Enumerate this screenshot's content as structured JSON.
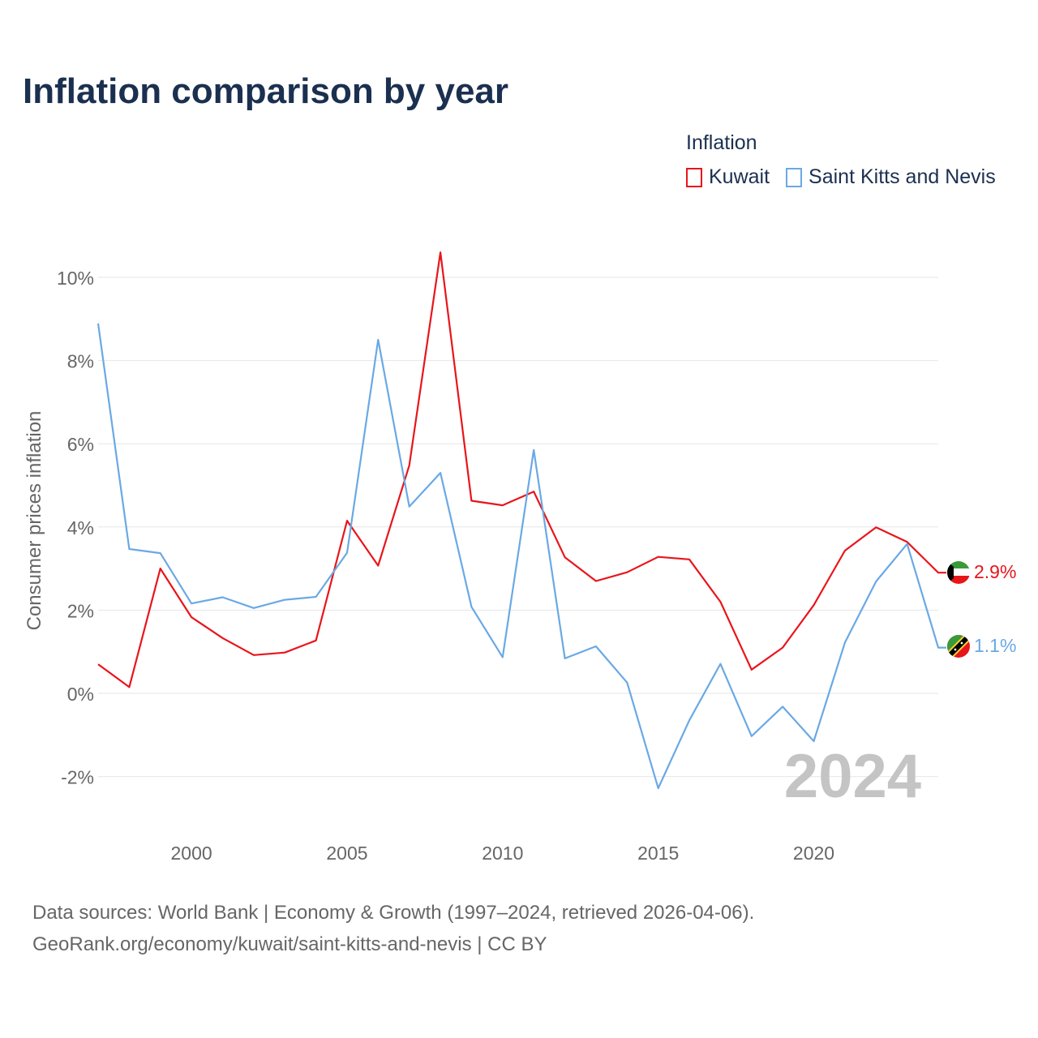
{
  "title": "Inflation comparison by year",
  "legend": {
    "title": "Inflation",
    "items": [
      {
        "label": "Kuwait",
        "color": "#e8151b"
      },
      {
        "label": "Saint Kitts and Nevis",
        "color": "#6aa9e4"
      }
    ]
  },
  "watermark_year": "2024",
  "source": {
    "line1": "Data sources: World Bank | Economy & Growth (1997–2024, retrieved 2026-04-06).",
    "line2": "GeoRank.org/economy/kuwait/saint-kitts-and-nevis | CC BY"
  },
  "chart_data": {
    "type": "line",
    "title": "Inflation comparison by year",
    "xlabel": "",
    "ylabel": "Consumer prices inflation",
    "xlim": [
      1997,
      2024
    ],
    "ylim": [
      -2.5,
      10.5
    ],
    "yticks": [
      -2,
      0,
      2,
      4,
      6,
      8,
      10
    ],
    "ytick_labels": [
      "-2%",
      "0%",
      "2%",
      "4%",
      "6%",
      "8%",
      "10%"
    ],
    "xticks": [
      2000,
      2005,
      2010,
      2015,
      2020
    ],
    "xtick_labels": [
      "2000",
      "2005",
      "2010",
      "2015",
      "2020"
    ],
    "grid": true,
    "x": [
      1997,
      1998,
      1999,
      2000,
      2001,
      2002,
      2003,
      2004,
      2005,
      2006,
      2007,
      2008,
      2009,
      2010,
      2011,
      2012,
      2013,
      2014,
      2015,
      2016,
      2017,
      2018,
      2019,
      2020,
      2021,
      2022,
      2023,
      2024
    ],
    "series": [
      {
        "name": "Kuwait",
        "color": "#e8151b",
        "values": [
          0.7,
          0.15,
          3.0,
          1.83,
          1.33,
          0.92,
          0.98,
          1.27,
          4.15,
          3.07,
          5.48,
          10.6,
          4.63,
          4.52,
          4.85,
          3.27,
          2.7,
          2.91,
          3.28,
          3.22,
          2.2,
          0.57,
          1.1,
          2.12,
          3.43,
          3.99,
          3.64,
          2.9
        ],
        "end_label": "2.9%"
      },
      {
        "name": "Saint Kitts and Nevis",
        "color": "#6aa9e4",
        "values": [
          8.89,
          3.47,
          3.37,
          2.16,
          2.31,
          2.05,
          2.25,
          2.32,
          3.38,
          8.5,
          4.49,
          5.3,
          2.08,
          0.87,
          5.85,
          0.84,
          1.13,
          0.26,
          -2.28,
          -0.65,
          0.71,
          -1.03,
          -0.32,
          -1.15,
          1.22,
          2.69,
          3.59,
          1.1
        ],
        "end_label": "1.1%"
      }
    ]
  }
}
